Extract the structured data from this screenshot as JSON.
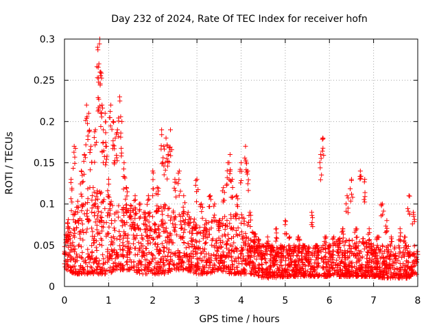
{
  "chart_data": {
    "type": "scatter",
    "title": "Day 232 of 2024, Rate Of TEC Index for receiver hofn",
    "xlabel": "GPS time / hours",
    "ylabel": "ROTI / TECUs",
    "xlim": [
      0,
      8
    ],
    "ylim": [
      0,
      0.3
    ],
    "x_ticks": [
      0,
      1,
      2,
      3,
      4,
      5,
      6,
      7,
      8
    ],
    "x_tick_labels": [
      "0",
      "1",
      "2",
      "3",
      "4",
      "5",
      "6",
      "7",
      "8"
    ],
    "y_ticks": [
      0,
      0.05,
      0.1,
      0.15,
      0.2,
      0.25,
      0.3
    ],
    "y_tick_labels": [
      "0",
      "0.05",
      "0.1",
      "0.15",
      "0.2",
      "0.25",
      "0.3"
    ],
    "grid": true,
    "marker": "+",
    "series": [
      {
        "name": "ROTI",
        "color": "#ff0000",
        "x": [
          0.0,
          0.08,
          0.15,
          0.22,
          0.3,
          0.38,
          0.45,
          0.5,
          0.55,
          0.6,
          0.65,
          0.7,
          0.75,
          0.78,
          0.8,
          0.82,
          0.85,
          0.88,
          0.92,
          0.95,
          1.0,
          1.05,
          1.1,
          1.15,
          1.2,
          1.25,
          1.3,
          1.35,
          1.4,
          1.5,
          1.6,
          1.7,
          1.8,
          1.9,
          2.0,
          2.1,
          2.2,
          2.25,
          2.3,
          2.35,
          2.4,
          2.5,
          2.6,
          2.7,
          2.8,
          2.9,
          3.0,
          3.1,
          3.2,
          3.3,
          3.4,
          3.5,
          3.6,
          3.7,
          3.75,
          3.8,
          3.9,
          4.0,
          4.1,
          4.15,
          4.2,
          4.3,
          4.4,
          4.5,
          4.6,
          4.7,
          4.8,
          4.9,
          5.0,
          5.1,
          5.2,
          5.3,
          5.4,
          5.5,
          5.6,
          5.7,
          5.8,
          5.85,
          5.9,
          6.0,
          6.1,
          6.2,
          6.3,
          6.4,
          6.5,
          6.6,
          6.7,
          6.8,
          6.9,
          7.0,
          7.1,
          7.2,
          7.3,
          7.4,
          7.5,
          7.6,
          7.7,
          7.8,
          7.9
        ],
        "y": [
          0.04,
          0.06,
          0.13,
          0.17,
          0.09,
          0.14,
          0.16,
          0.22,
          0.21,
          0.17,
          0.12,
          0.19,
          0.29,
          0.27,
          0.3,
          0.26,
          0.22,
          0.19,
          0.21,
          0.17,
          0.13,
          0.22,
          0.2,
          0.18,
          0.19,
          0.23,
          0.2,
          0.15,
          0.12,
          0.09,
          0.11,
          0.1,
          0.09,
          0.11,
          0.14,
          0.12,
          0.19,
          0.17,
          0.18,
          0.16,
          0.19,
          0.13,
          0.14,
          0.11,
          0.09,
          0.07,
          0.13,
          0.1,
          0.08,
          0.11,
          0.1,
          0.08,
          0.12,
          0.15,
          0.16,
          0.13,
          0.11,
          0.15,
          0.17,
          0.14,
          0.09,
          0.06,
          0.05,
          0.04,
          0.06,
          0.05,
          0.07,
          0.05,
          0.08,
          0.06,
          0.05,
          0.06,
          0.05,
          0.04,
          0.09,
          0.05,
          0.16,
          0.18,
          0.06,
          0.05,
          0.06,
          0.05,
          0.07,
          0.11,
          0.13,
          0.07,
          0.14,
          0.13,
          0.07,
          0.05,
          0.06,
          0.1,
          0.08,
          0.06,
          0.04,
          0.07,
          0.06,
          0.11,
          0.09
        ]
      }
    ],
    "envelope": {
      "x": [
        0.0,
        0.25,
        0.5,
        0.75,
        1.0,
        1.25,
        1.5,
        1.75,
        2.0,
        2.25,
        2.5,
        2.75,
        3.0,
        3.25,
        3.5,
        3.75,
        4.0,
        4.25,
        4.5,
        4.75,
        5.0,
        5.25,
        5.5,
        5.75,
        6.0,
        6.25,
        6.5,
        6.75,
        7.0,
        7.25,
        7.5,
        7.75,
        8.0
      ],
      "low": [
        0.02,
        0.015,
        0.015,
        0.015,
        0.015,
        0.02,
        0.02,
        0.015,
        0.015,
        0.015,
        0.02,
        0.02,
        0.015,
        0.015,
        0.02,
        0.015,
        0.015,
        0.015,
        0.01,
        0.01,
        0.012,
        0.012,
        0.012,
        0.012,
        0.012,
        0.012,
        0.012,
        0.012,
        0.012,
        0.01,
        0.01,
        0.01,
        0.015
      ],
      "high": [
        0.08,
        0.1,
        0.12,
        0.12,
        0.11,
        0.1,
        0.1,
        0.09,
        0.09,
        0.1,
        0.09,
        0.09,
        0.08,
        0.08,
        0.08,
        0.09,
        0.09,
        0.07,
        0.05,
        0.05,
        0.05,
        0.05,
        0.05,
        0.05,
        0.05,
        0.06,
        0.06,
        0.06,
        0.05,
        0.05,
        0.05,
        0.05,
        0.05
      ]
    },
    "point_count": 2400
  }
}
